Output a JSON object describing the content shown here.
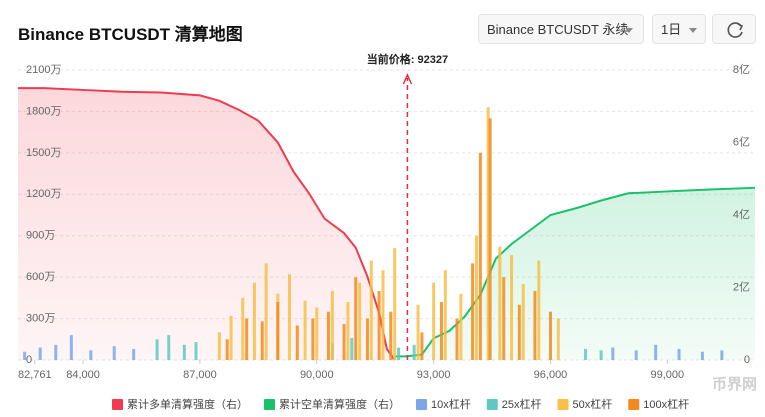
{
  "title": "Binance BTCUSDT 清算地图",
  "controls": {
    "exchange": "Binance BTCUSDT 永续",
    "interval": "1日"
  },
  "watermark": "币界网",
  "chart_data": {
    "type": "bar",
    "xlim": [
      82330,
      101250
    ],
    "xticks": [
      {
        "value": 82761,
        "label": "82,761"
      },
      {
        "value": 84000,
        "label": "84,000"
      },
      {
        "value": 87000,
        "label": "87,000"
      },
      {
        "value": 90000,
        "label": "90,000"
      },
      {
        "value": 93000,
        "label": "93,000"
      },
      {
        "value": 96000,
        "label": "96,000"
      },
      {
        "value": 99000,
        "label": "99,000"
      }
    ],
    "ylim": [
      0,
      2100
    ],
    "yticks": [
      0,
      {
        "value": 300,
        "label": "300万"
      },
      {
        "value": 600,
        "label": "600万"
      },
      {
        "value": 900,
        "label": "900万"
      },
      {
        "value": 1200,
        "label": "1200万"
      },
      {
        "value": 1500,
        "label": "1500万"
      },
      {
        "value": 1800,
        "label": "1800万"
      },
      {
        "value": 2100,
        "label": "2100万"
      }
    ],
    "y2lim": [
      0,
      8
    ],
    "y2ticks": [
      0,
      {
        "value": 2,
        "label": "2亿"
      },
      {
        "value": 4,
        "label": "4亿"
      },
      {
        "value": 6,
        "label": "6亿"
      },
      {
        "value": 8,
        "label": "8亿"
      }
    ],
    "grid": true,
    "current_price": {
      "value": 92327,
      "label": "当前价格: 92327"
    },
    "series": [
      {
        "name": "累计多单清算强度（右）",
        "type": "area",
        "axis": "y2",
        "color": "#ee3b4f",
        "x": [
          82330,
          83000,
          84000,
          85000,
          86000,
          87000,
          87500,
          88000,
          88500,
          89000,
          89400,
          89800,
          90200,
          90700,
          91000,
          91300,
          91600,
          91800,
          92000
        ],
        "values": [
          7.5,
          7.5,
          7.45,
          7.4,
          7.38,
          7.3,
          7.15,
          6.9,
          6.6,
          6.0,
          5.2,
          4.6,
          3.9,
          3.5,
          3.1,
          2.3,
          1.3,
          0.3,
          0
        ]
      },
      {
        "name": "累计空单清算强度（右）",
        "type": "area",
        "axis": "y2",
        "color": "#19c16b",
        "x": [
          92000,
          92300,
          92700,
          93000,
          93400,
          93800,
          94200,
          94600,
          95000,
          95500,
          96000,
          96700,
          97300,
          98000,
          99000,
          100000,
          101250
        ],
        "values": [
          0.1,
          0.1,
          0.15,
          0.6,
          0.8,
          1.2,
          1.8,
          2.8,
          3.2,
          3.6,
          4.0,
          4.2,
          4.4,
          4.6,
          4.65,
          4.7,
          4.75
        ]
      },
      {
        "name": "10x杠杆",
        "type": "bar",
        "color": "#7ba7e8",
        "x": [
          82500,
          82900,
          83300,
          83700,
          84200,
          84800,
          85300,
          97600,
          98200,
          98700,
          99300,
          99900,
          100400
        ],
        "values": [
          60,
          90,
          110,
          180,
          70,
          100,
          80,
          90,
          70,
          110,
          80,
          60,
          70
        ]
      },
      {
        "name": "25x杠杆",
        "type": "bar",
        "color": "#5ec9be",
        "x": [
          85900,
          86200,
          86600,
          86900,
          90400,
          90900,
          92100,
          92500,
          96900,
          97300
        ],
        "values": [
          150,
          180,
          110,
          130,
          120,
          160,
          90,
          110,
          80,
          70
        ]
      },
      {
        "name": "50x杠杆",
        "type": "bar",
        "color": "#f7c046",
        "x": [
          87500,
          87800,
          88100,
          88400,
          88700,
          89000,
          89300,
          89700,
          90000,
          90400,
          90800,
          91100,
          91400,
          91700,
          92000,
          92600,
          93000,
          93300,
          93700,
          94100,
          94400,
          94700,
          95000,
          95300,
          95700,
          96200
        ],
        "values": [
          200,
          320,
          450,
          560,
          700,
          480,
          620,
          430,
          380,
          500,
          420,
          560,
          720,
          650,
          810,
          400,
          560,
          650,
          480,
          900,
          1830,
          820,
          760,
          550,
          720,
          300
        ]
      },
      {
        "name": "100x杠杆",
        "type": "bar",
        "color": "#f28a1c",
        "x": [
          87700,
          88200,
          88600,
          89000,
          89500,
          89900,
          90300,
          90700,
          91000,
          91300,
          91600,
          91900,
          92700,
          93200,
          93600,
          94000,
          94200,
          94450,
          94800,
          95200,
          95600,
          96000
        ],
        "values": [
          150,
          300,
          280,
          420,
          250,
          300,
          350,
          260,
          600,
          300,
          500,
          350,
          200,
          420,
          300,
          700,
          1500,
          1750,
          600,
          400,
          500,
          350
        ]
      }
    ]
  }
}
